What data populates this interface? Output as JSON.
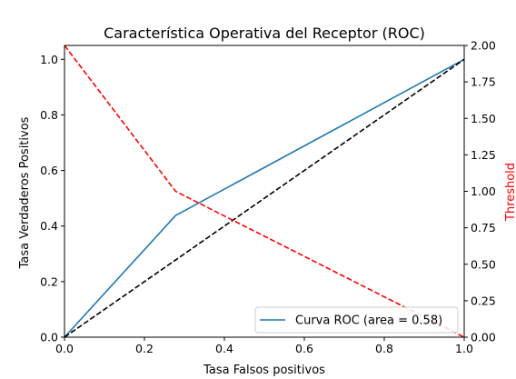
{
  "chart_data": {
    "type": "line",
    "title": "Característica Operativa del Receptor (ROC)",
    "xlabel": "Tasa Falsos positivos",
    "ylabel": "Tasa Verdaderos Positivos",
    "y2label": "Threshold",
    "xlim": [
      0.0,
      1.0
    ],
    "ylim": [
      0.0,
      1.05
    ],
    "y2lim": [
      0.0,
      2.0
    ],
    "xticks": [
      "0.0",
      "0.2",
      "0.4",
      "0.6",
      "0.8",
      "1.0"
    ],
    "yticks": [
      "0.0",
      "0.2",
      "0.4",
      "0.6",
      "0.8",
      "1.0"
    ],
    "y2ticks": [
      "0.00",
      "0.25",
      "0.50",
      "0.75",
      "1.00",
      "1.25",
      "1.50",
      "1.75",
      "2.00"
    ],
    "grid": false,
    "legend_position": "bottom-right",
    "series": [
      {
        "name": "Curva ROC (area = 0.58)",
        "axis": "left",
        "style": "solid",
        "color": "#1f77b4",
        "x": [
          0.0,
          0.278,
          1.0
        ],
        "y": [
          0.0,
          0.438,
          1.0
        ]
      },
      {
        "axis": "left",
        "style": "dashed",
        "color": "#000000",
        "x": [
          0.0,
          1.0
        ],
        "y": [
          0.0,
          1.0
        ]
      },
      {
        "axis": "right",
        "style": "dashed",
        "color": "#ff0000",
        "x": [
          0.0,
          0.278,
          1.0
        ],
        "y": [
          2.0,
          1.0,
          0.0
        ]
      }
    ]
  }
}
